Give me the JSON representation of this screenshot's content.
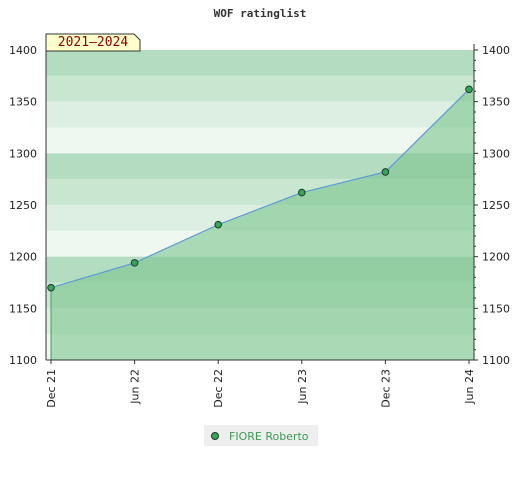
{
  "chart_data": {
    "type": "area",
    "title": "WOF ratinglist",
    "period_label": "2021–2024",
    "xlabel": "",
    "ylabel": "",
    "categories": [
      "Dec 21",
      "Jun 22",
      "Dec 22",
      "Jun 23",
      "Dec 23",
      "Jun 24"
    ],
    "ylim": [
      1100,
      1400
    ],
    "y_ticks": [
      1100,
      1150,
      1200,
      1250,
      1300,
      1350,
      1400
    ],
    "series": [
      {
        "name": "FIORE Roberto",
        "values": [
          1170,
          1194,
          1231,
          1262,
          1282,
          1362
        ]
      }
    ],
    "grid": true,
    "legend_position": "bottom-center",
    "colors": {
      "band_dark": "#b3dcc1",
      "band_mid": "#c8e6d0",
      "band_light": "#dcefe2",
      "band_lightest": "#eef7f0",
      "area_fill": "#7cc48e",
      "line": "#5b9bd5",
      "marker_fill": "#3aa35a",
      "legend_text": "#3c9b55",
      "legend_bg": "#eeeeee"
    }
  }
}
